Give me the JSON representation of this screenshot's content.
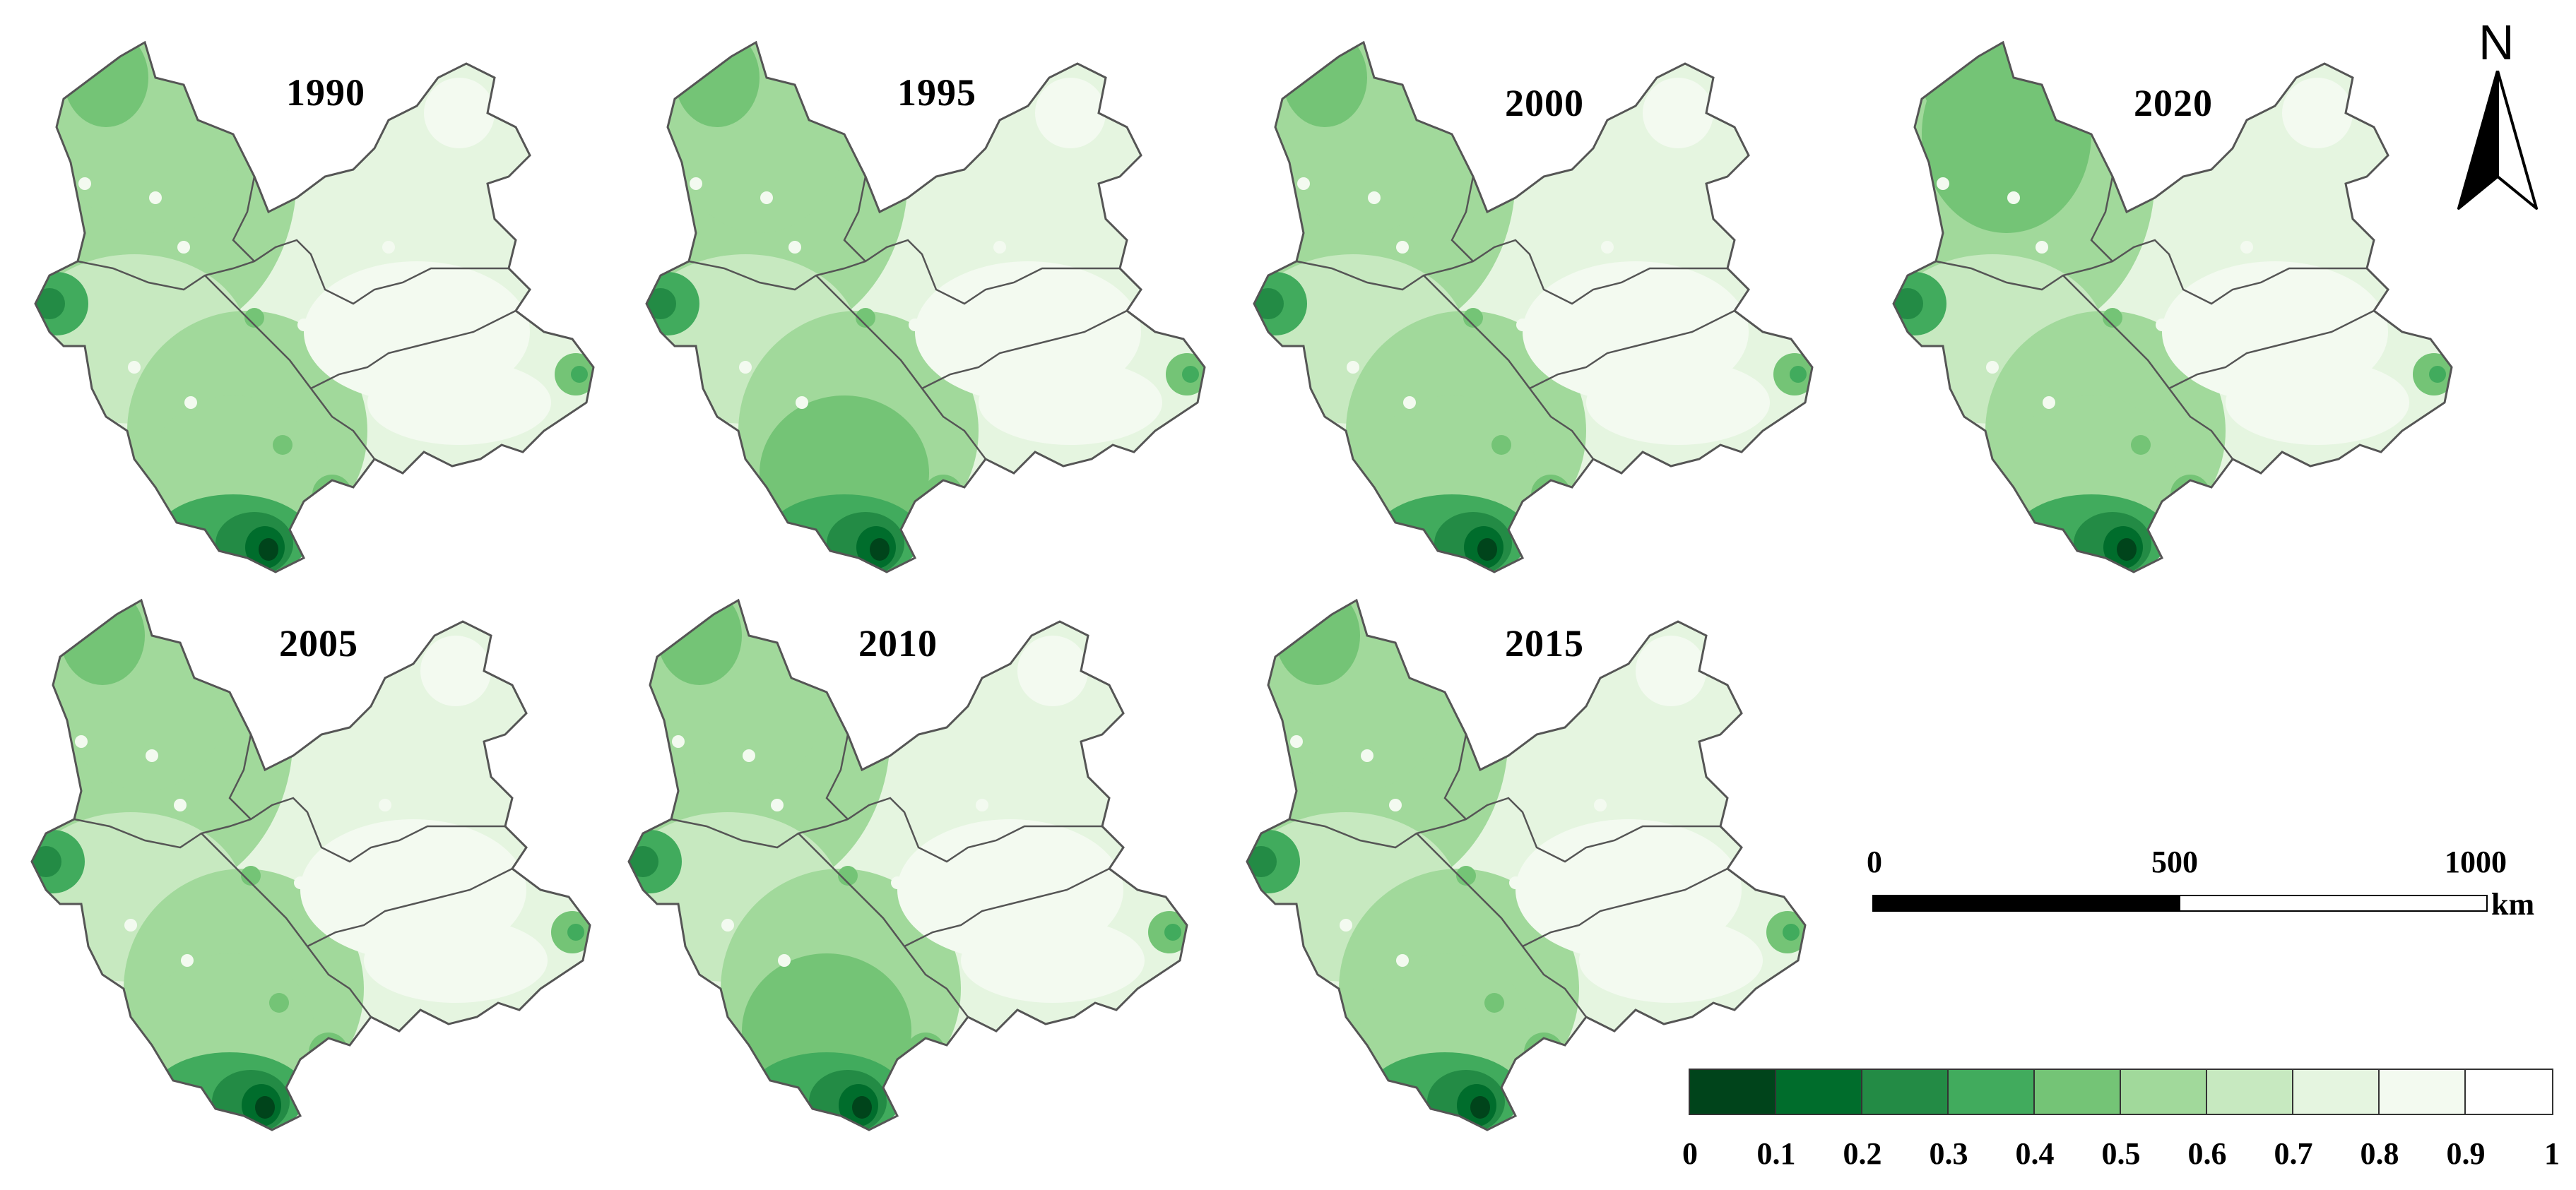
{
  "maps": [
    {
      "year": "1990"
    },
    {
      "year": "1995"
    },
    {
      "year": "2000"
    },
    {
      "year": "2020"
    },
    {
      "year": "2005"
    },
    {
      "year": "2010"
    },
    {
      "year": "2015"
    }
  ],
  "north_arrow": {
    "label": "N"
  },
  "scale_bar": {
    "ticks": [
      "0",
      "500",
      "1000"
    ],
    "unit": "km"
  },
  "legend": {
    "classes": [
      {
        "range": [
          0,
          0.1
        ],
        "color": "#00441b"
      },
      {
        "range": [
          0.1,
          0.2
        ],
        "color": "#006d2c"
      },
      {
        "range": [
          0.2,
          0.3
        ],
        "color": "#238b45"
      },
      {
        "range": [
          0.3,
          0.4
        ],
        "color": "#41ab5d"
      },
      {
        "range": [
          0.4,
          0.5
        ],
        "color": "#74c476"
      },
      {
        "range": [
          0.5,
          0.6
        ],
        "color": "#a1d99b"
      },
      {
        "range": [
          0.6,
          0.7
        ],
        "color": "#c7e9c0"
      },
      {
        "range": [
          0.7,
          0.8
        ],
        "color": "#e5f5e0"
      },
      {
        "range": [
          0.8,
          0.9
        ],
        "color": "#f3faf0"
      },
      {
        "range": [
          0.9,
          1
        ],
        "color": "#ffffff"
      }
    ],
    "tick_labels": [
      "0",
      "0.1",
      "0.2",
      "0.3",
      "0.4",
      "0.5",
      "0.6",
      "0.7",
      "0.8",
      "0.9",
      "1"
    ]
  },
  "colors": {
    "border": "#555555",
    "dark_green": "#00441b",
    "mid_green": "#74c476",
    "light_green": "#e5f5e0"
  }
}
